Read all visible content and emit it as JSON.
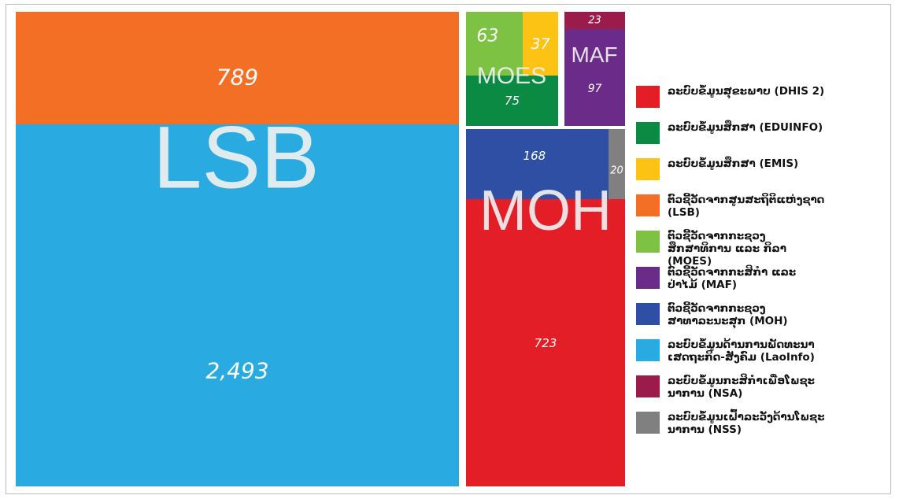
{
  "chart_data": {
    "type": "treemap",
    "groups": [
      "LSB",
      "MOES",
      "MAF",
      "MOH"
    ],
    "series": [
      {
        "name": "ລະບົບຂໍ້ມູນສຸຂະພາບ (DHIS 2)",
        "color": "#e31e26",
        "value": 723,
        "group": 3
      },
      {
        "name": "ລະບົບຂໍ້ມູນສຶກສາ (EDUINFO)",
        "color": "#0b8a44",
        "value": 75,
        "group": 1
      },
      {
        "name": "ລະບົບຂໍ້ມູນສຶກສາ (EMIS)",
        "color": "#fcc315",
        "value": 37,
        "group": 1
      },
      {
        "name": "ຕົວຊີ້ວັດຈາກສູນສະຖິຕິແຫ່ງຊາດ (LSB)",
        "color": "#f36f26",
        "value": 789,
        "group": 0
      },
      {
        "name": "ຕົວຊີ້ວັດຈາກກະຊວງສຶກສາທິການ ແລະ ກິລາ (MOES)",
        "color": "#7dc242",
        "value": 63,
        "group": 1
      },
      {
        "name": "ຕົວຊີ້ວັດຈາກກະສິກຳ ແລະ ປ່າໄມ້ (MAF)",
        "color": "#6a2c88",
        "value": 97,
        "group": 2
      },
      {
        "name": "ຕົວຊີ້ວັດຈາກກະຊວງສາທາລະນະສຸກ (MOH)",
        "color": "#2e4fa3",
        "value": 168,
        "group": 3
      },
      {
        "name": "ລະບົບຂໍ້ມູນດ້ານການພັດທະນາເສດຖະກິດ-ສັງຄົມ (LaoInfo)",
        "color": "#29abe2",
        "value": 2493,
        "value_label": "2,493",
        "group": 0
      },
      {
        "name": "ລະບົບຂໍ້ມູນກະສິກຳເພື່ອໂພຊະນາການ (NSA)",
        "color": "#9b1b4a",
        "value": 23,
        "group": 2
      },
      {
        "name": "ລະບົບຂໍ້ມູນເຝົ້າລະວັງດ້ານໂພຊະນາການ (NSS)",
        "color": "#808080",
        "value": 20,
        "group": 3
      }
    ]
  }
}
